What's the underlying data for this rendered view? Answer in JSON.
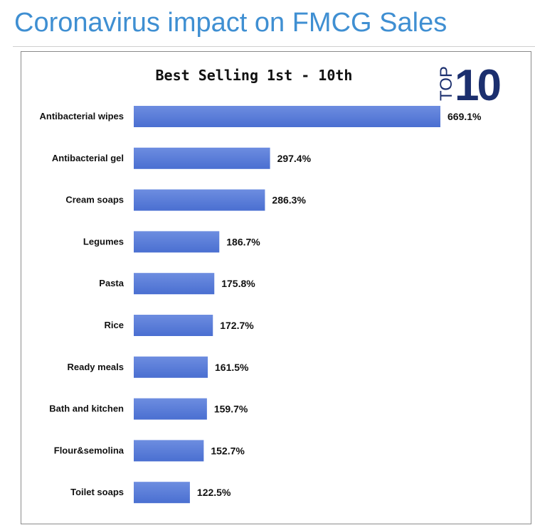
{
  "page": {
    "title": "Coronavirus impact on FMCG Sales"
  },
  "badge": {
    "top": "TOP",
    "number": "10"
  },
  "colors": {
    "title": "#3f8fd2",
    "bar": "#4a6fd1",
    "bar_highlight": "#6d8de0",
    "badge": "#1b2f6e"
  },
  "chart_data": {
    "type": "bar",
    "orientation": "horizontal",
    "title": "Best Selling 1st - 10th",
    "xlabel": "",
    "ylabel": "",
    "xlim": [
      0,
      700
    ],
    "grid": false,
    "categories": [
      "Antibacterial wipes",
      "Antibacterial gel",
      "Cream soaps",
      "Legumes",
      "Pasta",
      "Rice",
      "Ready meals",
      "Bath and kitchen",
      "Flour&semolina",
      "Toilet soaps"
    ],
    "values": [
      669.1,
      297.4,
      286.3,
      186.7,
      175.8,
      172.7,
      161.5,
      159.7,
      152.7,
      122.5
    ],
    "value_labels": [
      "669.1%",
      "297.4%",
      "286.3%",
      "186.7%",
      "175.8%",
      "172.7%",
      "161.5%",
      "159.7%",
      "152.7%",
      "122.5%"
    ]
  }
}
